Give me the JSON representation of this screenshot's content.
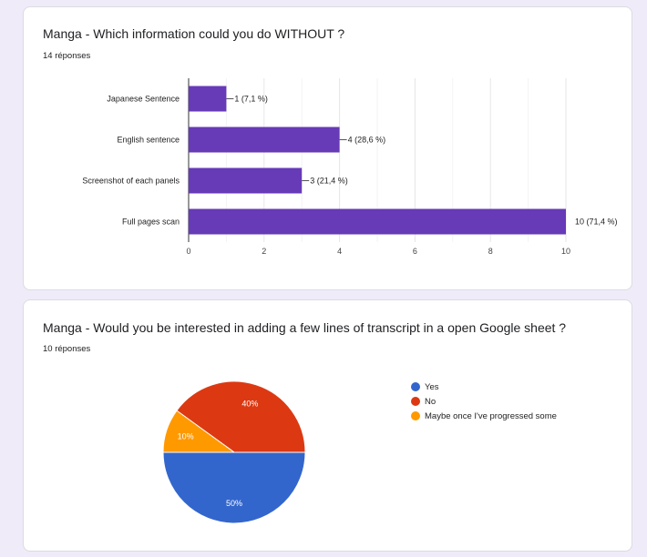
{
  "question1": {
    "title": "Manga - Which information could you do WITHOUT ?",
    "responses": "14 réponses"
  },
  "question2": {
    "title": "Manga - Would you be interested in adding a few lines of transcript in a open Google sheet ?",
    "responses": "10 réponses"
  },
  "chart_data": [
    {
      "type": "bar",
      "orientation": "horizontal",
      "categories": [
        "Japanese Sentence",
        "English sentence",
        "Screenshot of each panels",
        "Full pages scan"
      ],
      "values": [
        1,
        4,
        3,
        10
      ],
      "data_labels": [
        "1 (7,1 %)",
        "4 (28,6 %)",
        "3 (21,4 %)",
        "10 (71,4 %)"
      ],
      "xlim": [
        0,
        10
      ],
      "xticks": [
        "0",
        "2",
        "4",
        "6",
        "8",
        "10"
      ],
      "grid": true,
      "colors": {
        "bar": "#673ab7"
      }
    },
    {
      "type": "pie",
      "labels": [
        "Yes",
        "No",
        "Maybe once I've progressed some"
      ],
      "values": [
        50,
        40,
        10
      ],
      "data_labels": [
        "50%",
        "40%",
        "10%"
      ],
      "colors": [
        "#3366cc",
        "#dc3912",
        "#ff9900"
      ],
      "legend": "right"
    }
  ]
}
